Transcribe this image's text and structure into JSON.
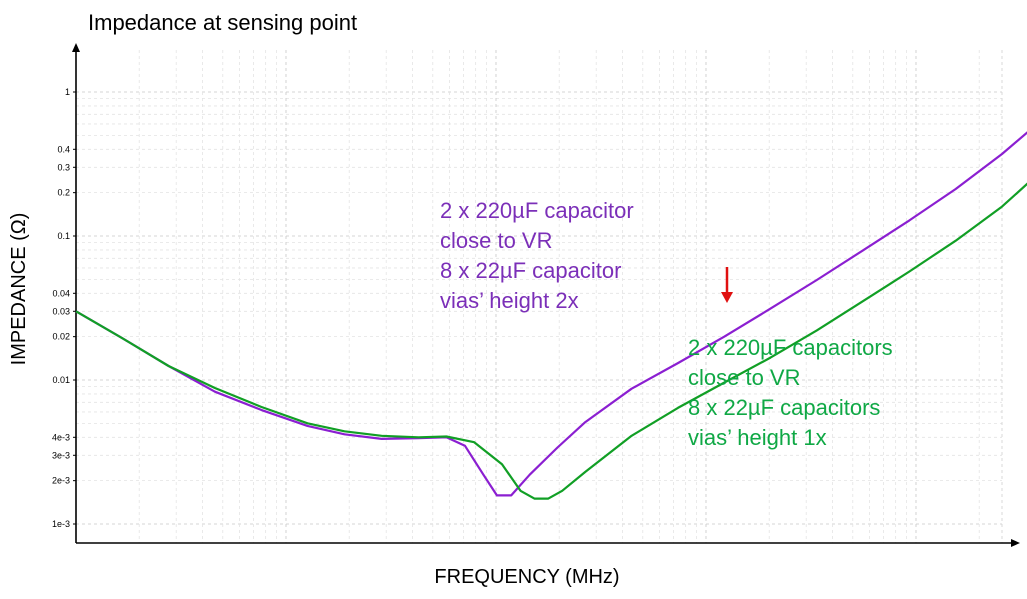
{
  "chart_data": {
    "type": "line",
    "title": "Impedance at sensing point",
    "xlabel": "FREQUENCY (MHz)",
    "ylabel": "IMPEDANCE (Ω)",
    "yscale": "log",
    "xscale": "log",
    "grid": true,
    "yticks": [
      {
        "label": "1",
        "value": 1
      },
      {
        "label": "0.4",
        "value": 0.4
      },
      {
        "label": "0.3",
        "value": 0.3
      },
      {
        "label": "0.2",
        "value": 0.2
      },
      {
        "label": "0.1",
        "value": 0.1
      },
      {
        "label": "0.04",
        "value": 0.04
      },
      {
        "label": "0.03",
        "value": 0.03
      },
      {
        "label": "0.02",
        "value": 0.02
      },
      {
        "label": "0.01",
        "value": 0.01
      },
      {
        "label": "4e-3",
        "value": 0.004
      },
      {
        "label": "3e-3",
        "value": 0.003
      },
      {
        "label": "2e-3",
        "value": 0.002
      },
      {
        "label": "1e-3",
        "value": 0.001
      }
    ],
    "series": [
      {
        "color": "#8B1FD1",
        "points": [
          [
            0.0,
            0.03
          ],
          [
            0.05,
            0.0195
          ],
          [
            0.1,
            0.0125
          ],
          [
            0.15,
            0.0083
          ],
          [
            0.2,
            0.0062
          ],
          [
            0.25,
            0.0048
          ],
          [
            0.29,
            0.0042
          ],
          [
            0.33,
            0.0039
          ],
          [
            0.37,
            0.00395
          ],
          [
            0.4,
            0.004
          ],
          [
            0.42,
            0.0035
          ],
          [
            0.44,
            0.0022
          ],
          [
            0.4545,
            0.00158
          ],
          [
            0.47,
            0.00158
          ],
          [
            0.49,
            0.0022
          ],
          [
            0.52,
            0.0034
          ],
          [
            0.55,
            0.0051
          ],
          [
            0.6,
            0.0087
          ],
          [
            0.65,
            0.0131
          ],
          [
            0.7,
            0.02
          ],
          [
            0.75,
            0.0313
          ],
          [
            0.8,
            0.0495
          ],
          [
            0.85,
            0.0795
          ],
          [
            0.9,
            0.1284
          ],
          [
            0.95,
            0.212
          ],
          [
            1.0,
            0.371
          ],
          [
            1.0334,
            0.565
          ]
        ]
      },
      {
        "color": "#119F25",
        "points": [
          [
            0.0,
            0.03
          ],
          [
            0.05,
            0.0195
          ],
          [
            0.1,
            0.0125
          ],
          [
            0.15,
            0.0088
          ],
          [
            0.2,
            0.0065
          ],
          [
            0.25,
            0.005
          ],
          [
            0.29,
            0.0044
          ],
          [
            0.33,
            0.0041
          ],
          [
            0.37,
            0.004
          ],
          [
            0.4,
            0.00405
          ],
          [
            0.43,
            0.0037
          ],
          [
            0.46,
            0.0026
          ],
          [
            0.48,
            0.0017
          ],
          [
            0.495,
            0.0015
          ],
          [
            0.51,
            0.0015
          ],
          [
            0.525,
            0.0017
          ],
          [
            0.55,
            0.0023
          ],
          [
            0.6,
            0.0041
          ],
          [
            0.65,
            0.0064
          ],
          [
            0.7,
            0.0096
          ],
          [
            0.75,
            0.0143
          ],
          [
            0.8,
            0.0221
          ],
          [
            0.85,
            0.0353
          ],
          [
            0.9,
            0.0567
          ],
          [
            0.95,
            0.0928
          ],
          [
            1.0,
            0.16
          ],
          [
            1.0334,
            0.25
          ]
        ]
      }
    ],
    "annotations": [
      {
        "color": "#7B2FB8",
        "lines": [
          "2 x 220µF capacitor",
          "close to VR",
          "8 x 22µF capacitor",
          "vias’ height 2x"
        ]
      },
      {
        "color": "#0FA845",
        "lines": [
          "2 x 220µF capacitors",
          "close to VR",
          "8 x 22µF capacitors",
          "vias’ height 1x"
        ]
      }
    ],
    "arrow_color": "#E01010"
  }
}
